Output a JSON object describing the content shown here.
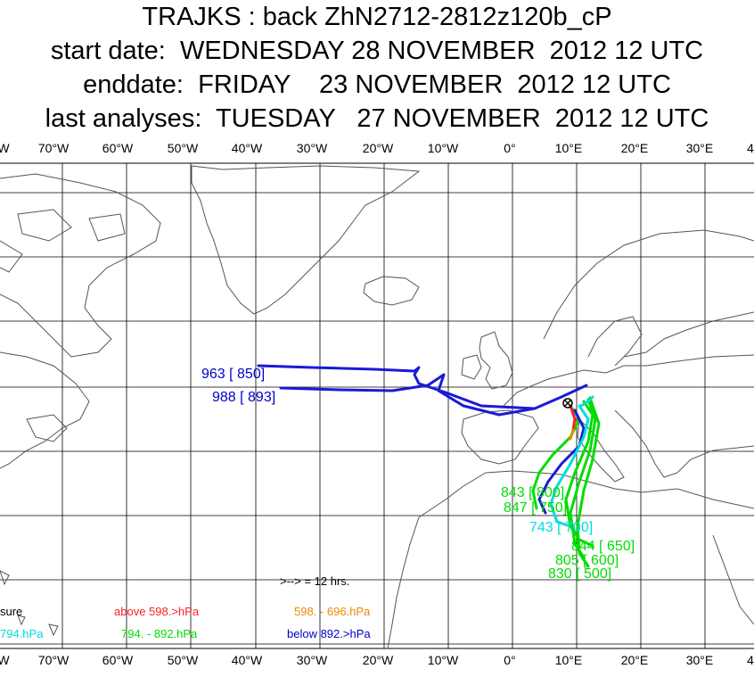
{
  "title": {
    "line1": "TRAJKS : back ZhN2712-2812z120b_cP",
    "line2": "start date:  WEDNESDAY 28 NOVEMBER  2012 12 UTC",
    "line3": "enddate:  FRIDAY    23 NOVEMBER  2012 12 UTC",
    "line4": "last analyses:  TUESDAY   27 NOVEMBER  2012 12 UTC"
  },
  "lon_labels": [
    "W",
    "70°W",
    "60°W",
    "50°W",
    "40°W",
    "30°W",
    "20°W",
    "10°W",
    "0°",
    "10°E",
    "20°E",
    "30°E",
    "4"
  ],
  "trajectory_labels": [
    {
      "text": "963 [ 850]",
      "color": "#0000c8"
    },
    {
      "text": "988 [ 893]",
      "color": "#0000c8"
    },
    {
      "text": "843 [ 800]",
      "color": "#00dd00"
    },
    {
      "text": "847 [ 750]",
      "color": "#00dd00"
    },
    {
      "text": "743 [ 700]",
      "color": "#00dddd"
    },
    {
      "text": "844 [ 650]",
      "color": "#00dd00"
    },
    {
      "text": "805 [ 600]",
      "color": "#00dd00"
    },
    {
      "text": "830 [ 500]",
      "color": "#00dd00"
    }
  ],
  "legend": {
    "arrow_note": ">--> = 12 hrs.",
    "pressure": "sure",
    "above": "above   598.>hPa",
    "band_orange": "598. -     696.hPa",
    "band_cyan": "794.hPa",
    "band_green": "794. -     892.hPa",
    "below": "below   892.>hPa"
  },
  "colors": {
    "above": "#ff2020",
    "orange": "#ee8800",
    "green": "#00dd00",
    "cyan": "#00dddd",
    "blue": "#0000c8",
    "grid": "#000000",
    "coast": "#555555"
  }
}
